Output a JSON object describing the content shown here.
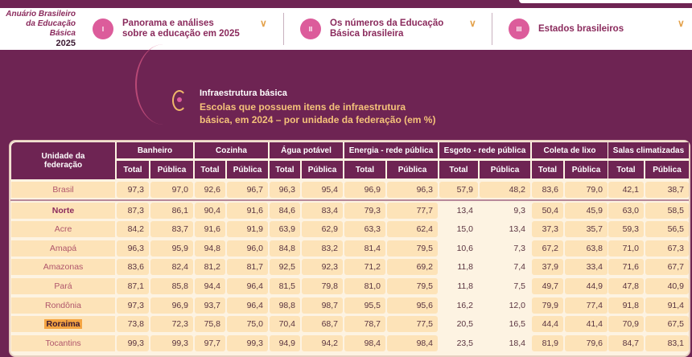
{
  "brand": {
    "line1": "Anuário Brasileiro",
    "line2": "da Educação Básica",
    "year": "2025"
  },
  "nav": [
    {
      "numeral": "I",
      "label1": "Panorama e análises",
      "label2": "sobre a educação em 2025"
    },
    {
      "numeral": "II",
      "label1": "Os números da Educação",
      "label2": "Básica brasileira"
    },
    {
      "numeral": "III",
      "label1": "Estados brasileiros",
      "label2": ""
    }
  ],
  "section": {
    "category": "Infraestrutura básica",
    "title": "Escolas que possuem itens de infraestrutura básica, em 2024 – por unidade da federação (em %)"
  },
  "table": {
    "first_header": "Unidade da federação",
    "groups": [
      "Banheiro",
      "Cozinha",
      "Água potável",
      "Energia - rede pública",
      "Esgoto - rede pública",
      "Coleta de lixo",
      "Salas climatizadas"
    ],
    "sub": [
      "Total",
      "Pública"
    ],
    "highlight_color": "#f4a442",
    "rows": [
      {
        "name": "Brasil",
        "values": [
          "97,3",
          "97,0",
          "92,6",
          "96,7",
          "96,3",
          "95,4",
          "96,9",
          "96,3",
          "57,9",
          "48,2",
          "83,6",
          "79,0",
          "42,1",
          "38,7"
        ]
      },
      {
        "name": "Norte",
        "bold": true,
        "values": [
          "87,3",
          "86,1",
          "90,4",
          "91,6",
          "84,6",
          "83,4",
          "79,3",
          "77,7",
          "13,4",
          "9,3",
          "50,4",
          "45,9",
          "63,0",
          "58,5"
        ]
      },
      {
        "name": "Acre",
        "values": [
          "84,2",
          "83,7",
          "91,6",
          "91,9",
          "63,9",
          "62,9",
          "63,3",
          "62,4",
          "15,0",
          "13,4",
          "37,3",
          "35,7",
          "59,3",
          "56,5"
        ]
      },
      {
        "name": "Amapá",
        "values": [
          "96,3",
          "95,9",
          "94,8",
          "96,0",
          "84,8",
          "83,2",
          "81,4",
          "79,5",
          "10,6",
          "7,3",
          "67,2",
          "63,8",
          "71,0",
          "67,3"
        ]
      },
      {
        "name": "Amazonas",
        "values": [
          "83,6",
          "82,4",
          "81,2",
          "81,7",
          "92,5",
          "92,3",
          "71,2",
          "69,2",
          "11,8",
          "7,4",
          "37,9",
          "33,4",
          "71,6",
          "67,7"
        ]
      },
      {
        "name": "Pará",
        "values": [
          "87,1",
          "85,8",
          "94,4",
          "96,4",
          "81,5",
          "79,8",
          "81,0",
          "79,5",
          "11,8",
          "7,5",
          "49,7",
          "44,9",
          "47,8",
          "40,9"
        ]
      },
      {
        "name": "Rondônia",
        "values": [
          "97,3",
          "96,9",
          "93,7",
          "96,4",
          "98,8",
          "98,7",
          "95,5",
          "95,6",
          "16,2",
          "12,0",
          "79,9",
          "77,4",
          "91,8",
          "91,4"
        ]
      },
      {
        "name": "Roraima",
        "highlighted": true,
        "values": [
          "73,8",
          "72,3",
          "75,8",
          "75,0",
          "70,4",
          "68,7",
          "78,7",
          "77,5",
          "20,5",
          "16,5",
          "44,4",
          "41,4",
          "70,9",
          "67,5"
        ]
      },
      {
        "name": "Tocantins",
        "values": [
          "99,3",
          "99,3",
          "97,7",
          "99,3",
          "94,9",
          "94,2",
          "98,4",
          "98,4",
          "23,5",
          "18,4",
          "81,9",
          "79,6",
          "84,7",
          "83,1"
        ]
      }
    ]
  }
}
